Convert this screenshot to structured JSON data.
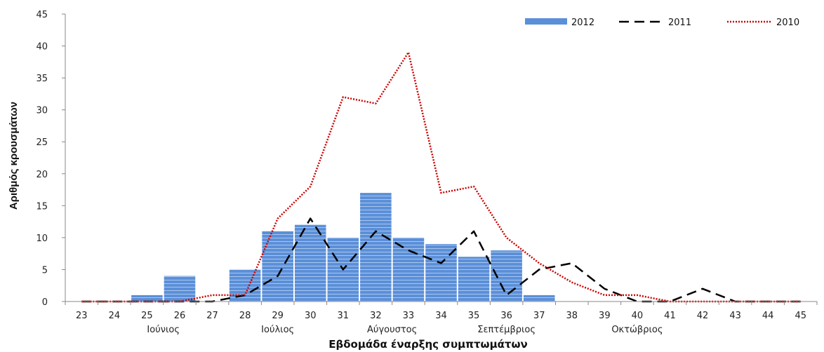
{
  "chart_data": {
    "type": "bar",
    "title": "",
    "xlabel": "Εβδομάδα έναρξης συμπτωμάτων",
    "ylabel": "Αριθμός κρουσμάτων",
    "ylim": [
      0,
      45
    ],
    "yticks": [
      0,
      5,
      10,
      15,
      20,
      25,
      30,
      35,
      40,
      45
    ],
    "grid": false,
    "legend_position": "top-right",
    "categories": [
      "23",
      "24",
      "25",
      "26",
      "27",
      "28",
      "29",
      "30",
      "31",
      "32",
      "33",
      "34",
      "35",
      "36",
      "37",
      "38",
      "39",
      "40",
      "41",
      "42",
      "43",
      "44",
      "45"
    ],
    "month_labels": [
      {
        "label": "Ιούνιος",
        "week": "25.5"
      },
      {
        "label": "Ιούλιος",
        "week": "29"
      },
      {
        "label": "Αύγουστος",
        "week": "32.5"
      },
      {
        "label": "Σεπτέμβριος",
        "week": "36"
      },
      {
        "label": "Οκτώβριος",
        "week": "40"
      }
    ],
    "series": [
      {
        "name": "2012",
        "type": "bar",
        "color": "#5b8fd8",
        "values": [
          0,
          0,
          1,
          4,
          0,
          5,
          11,
          12,
          10,
          17,
          10,
          9,
          7,
          8,
          1,
          0,
          0,
          0,
          0,
          0,
          0,
          0,
          0
        ]
      },
      {
        "name": "2011",
        "type": "line",
        "style": "dashed",
        "color": "#000000",
        "values": [
          0,
          0,
          0,
          0,
          0,
          1,
          4,
          13,
          5,
          11,
          8,
          6,
          11,
          1,
          5,
          6,
          2,
          0,
          0,
          2,
          0,
          0,
          0
        ]
      },
      {
        "name": "2010",
        "type": "line",
        "style": "dotted",
        "color": "#cc0000",
        "values": [
          0,
          0,
          0,
          0,
          1,
          1,
          13,
          18,
          32,
          31,
          39,
          17,
          18,
          10,
          6,
          3,
          1,
          1,
          0,
          0,
          0,
          0,
          0
        ]
      }
    ]
  }
}
